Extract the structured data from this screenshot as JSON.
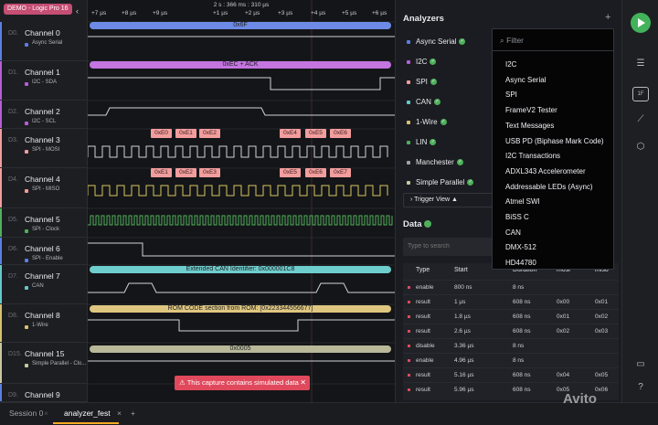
{
  "session_label": "DEMO - Logic Pro 16",
  "time_readout": "2 s : 366 ms : 310 µs",
  "ticks": [
    "+7 µs",
    "+8 µs",
    "+9 µs",
    "+1 µs",
    "+2 µs",
    "+3 µs",
    "+4 µs",
    "+5 µs",
    "+6 µs"
  ],
  "channels": [
    {
      "num": "D0.",
      "name": "Channel 0",
      "sub": "Async Serial",
      "color": "#5b7ee0"
    },
    {
      "num": "D1.",
      "name": "Channel 1",
      "sub": "I2C - SDA",
      "color": "#b45fd6"
    },
    {
      "num": "D2.",
      "name": "Channel 2",
      "sub": "I2C - SCL",
      "color": "#b45fd6"
    },
    {
      "num": "D3.",
      "name": "Channel 3",
      "sub": "SPI - MOSI",
      "color": "#f29d9d"
    },
    {
      "num": "D4.",
      "name": "Channel 4",
      "sub": "SPI - MISO",
      "color": "#f29d9d"
    },
    {
      "num": "D5.",
      "name": "Channel 5",
      "sub": "SPI - Clock",
      "color": "#4fb05b"
    },
    {
      "num": "D6.",
      "name": "Channel 6",
      "sub": "SPI - Enable",
      "color": "#5b7ee0"
    },
    {
      "num": "D7.",
      "name": "Channel 7",
      "sub": "CAN",
      "color": "#62c9c9"
    },
    {
      "num": "D8.",
      "name": "Channel 8",
      "sub": "1-Wire",
      "color": "#d9c06e"
    },
    {
      "num": "D15.",
      "name": "Channel 15",
      "sub": "Simple Parallel - Clo...",
      "color": "#c8c8a0"
    },
    {
      "num": "D9.",
      "name": "Channel 9",
      "sub": "",
      "color": "#5b7ee0"
    }
  ],
  "protocol_bars": {
    "async": "0x6F",
    "i2c": "0xEC + ACK",
    "can": "Extended CAN Identifier: 0x000001C8",
    "onewire": "ROM CODE section from ROM: [0x223344556677]",
    "parallel": "0x0005"
  },
  "mosi_frames": [
    "0xE0",
    "0xE1",
    "0xE2",
    "0xE4",
    "0xE5",
    "0xE6"
  ],
  "miso_frames": [
    "0xE1",
    "0xE2",
    "0xE3",
    "0xE5",
    "0xE6",
    "0xE7"
  ],
  "sim_banner": "This capture contains simulated data",
  "bottom_tabs": [
    "Session 0",
    "analyzer_fest"
  ],
  "analyzers": {
    "title": "Analyzers",
    "items": [
      {
        "label": "Async Serial",
        "color": "#5b7ee0"
      },
      {
        "label": "I2C",
        "color": "#b45fd6"
      },
      {
        "label": "SPI",
        "color": "#f29d9d"
      },
      {
        "label": "CAN",
        "color": "#62c9c9"
      },
      {
        "label": "1-Wire",
        "color": "#d9c06e"
      },
      {
        "label": "LIN",
        "color": "#4fb05b"
      },
      {
        "label": "Manchester",
        "color": "#9ea2aa"
      },
      {
        "label": "Simple Parallel",
        "color": "#c8c8a0"
      }
    ],
    "trigger": "Trigger View"
  },
  "data": {
    "title": "Data",
    "search_placeholder": "Type to search",
    "columns": [
      "Type",
      "Start",
      "Duration",
      "mosi",
      "miso"
    ],
    "rows": [
      [
        "enable",
        "800 ns",
        "8 ns",
        "",
        ""
      ],
      [
        "result",
        "1 µs",
        "608 ns",
        "0x00",
        "0x01"
      ],
      [
        "result",
        "1.8 µs",
        "608 ns",
        "0x01",
        "0x02"
      ],
      [
        "result",
        "2.6 µs",
        "608 ns",
        "0x02",
        "0x03"
      ],
      [
        "disable",
        "3.36 µs",
        "8 ns",
        "",
        ""
      ],
      [
        "enable",
        "4.96 µs",
        "8 ns",
        "",
        ""
      ],
      [
        "result",
        "5.16 µs",
        "608 ns",
        "0x04",
        "0x05"
      ],
      [
        "result",
        "5.96 µs",
        "608 ns",
        "0x05",
        "0x06"
      ]
    ]
  },
  "dropdown": {
    "placeholder": "Filter",
    "items": [
      "I2C",
      "Async Serial",
      "SPI",
      "FrameV2 Tester",
      "Text Messages",
      "USB PD (Biphase Mark Code)",
      "I2C Transactions",
      "ADXL343 Accelerometer",
      "Addressable LEDs (Async)",
      "Atmel SWI",
      "BiSS C",
      "CAN",
      "DMX-512",
      "HD44780"
    ]
  },
  "watermark": "Avito"
}
